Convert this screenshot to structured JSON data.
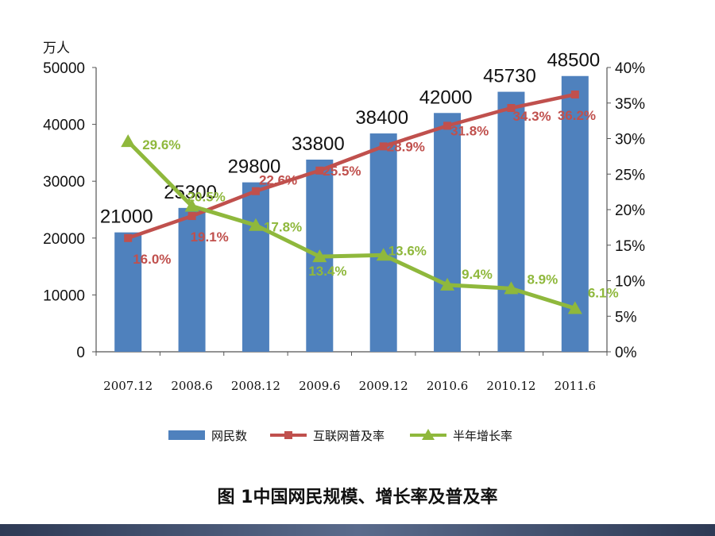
{
  "caption": "图 1中国网民规模、增长率及普及率",
  "chart_data": {
    "type": "bar",
    "categories": [
      "2007.12",
      "2008.6",
      "2008.12",
      "2009.6",
      "2009.12",
      "2010.6",
      "2010.12",
      "2011.6"
    ],
    "y_unit_label": "万人",
    "ylim": [
      0,
      50000
    ],
    "y_ticks": [
      "0",
      "10000",
      "20000",
      "30000",
      "40000",
      "50000"
    ],
    "y2lim": [
      0,
      40
    ],
    "y2_ticks": [
      "0%",
      "5%",
      "10%",
      "15%",
      "20%",
      "25%",
      "30%",
      "35%",
      "40%"
    ],
    "grid": false,
    "legend_position": "bottom",
    "series": [
      {
        "name": "网民数",
        "type": "bar",
        "axis": "left",
        "color": "#4f81bd",
        "values": [
          21000,
          25300,
          29800,
          33800,
          38400,
          42000,
          45730,
          48500
        ],
        "labels": [
          "21000",
          "25300",
          "29800",
          "33800",
          "38400",
          "42000",
          "45730",
          "48500"
        ]
      },
      {
        "name": "互联网普及率",
        "type": "line",
        "axis": "right",
        "marker": "square",
        "color": "#c0504d",
        "values": [
          16.0,
          19.1,
          22.6,
          25.5,
          28.9,
          31.8,
          34.3,
          36.2
        ],
        "labels": [
          "16.0%",
          "19.1%",
          "22.6%",
          "25.5%",
          "28.9%",
          "31.8%",
          "34.3%",
          "36.2%"
        ]
      },
      {
        "name": "半年增长率",
        "type": "line",
        "axis": "right",
        "marker": "triangle",
        "color": "#8fb83c",
        "values": [
          29.6,
          20.5,
          17.8,
          13.4,
          13.6,
          9.4,
          8.9,
          6.1
        ],
        "labels": [
          "29.6%",
          "20.5%",
          "17.8%",
          "13.4%",
          "13.6%",
          "9.4%",
          "8.9%",
          "6.1%"
        ]
      }
    ]
  }
}
